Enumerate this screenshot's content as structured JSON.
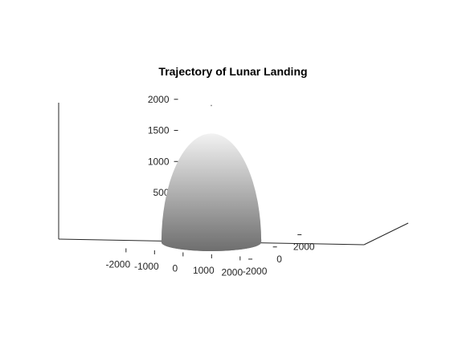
{
  "chart_data": {
    "type": "surface",
    "title": "Trajectory of Lunar Landing",
    "xlabel": "",
    "ylabel": "",
    "zlabel": "",
    "x_ticks": [
      -2000,
      -1000,
      0,
      1000,
      2000
    ],
    "y_ticks": [
      -2000,
      0,
      2000
    ],
    "z_ticks": [
      0,
      500,
      1000,
      1500,
      2000
    ],
    "xlim": [
      -2300,
      2300
    ],
    "ylim": [
      -2300,
      2300
    ],
    "zlim": [
      0,
      2200
    ],
    "grid": false,
    "legend": "none",
    "series": [
      {
        "type": "hemisphere-surface",
        "center": [
          0,
          0,
          0
        ],
        "radius": 1750
      },
      {
        "type": "trajectory-point",
        "x": 0,
        "y": 0,
        "z": 2200
      }
    ],
    "colors": {
      "surface_top": "#f2f2f2",
      "surface_bottom": "#6e6e6e",
      "axis": "#262626",
      "point": "#808080"
    }
  }
}
